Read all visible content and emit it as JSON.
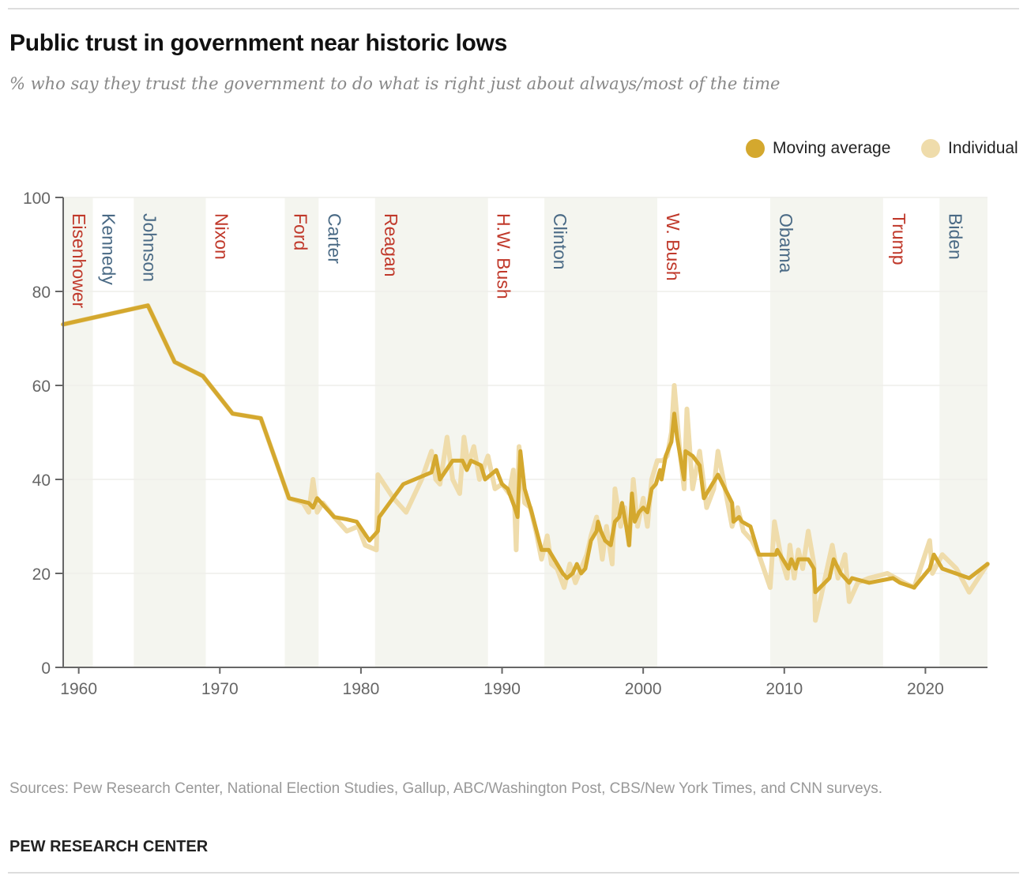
{
  "chart_data": {
    "type": "line",
    "title": "Public trust in government near historic lows",
    "subtitle": "% who say they trust the government to do what is right just about always/most of the time",
    "xlabel": "",
    "ylabel": "",
    "xlim": [
      1958.9,
      2024.4
    ],
    "ylim": [
      0,
      100
    ],
    "xticks": [
      1960,
      1970,
      1980,
      1990,
      2000,
      2010,
      2020
    ],
    "yticks": [
      0,
      20,
      40,
      60,
      80,
      100
    ],
    "grid": true,
    "legend_position": "top-right",
    "legend": [
      {
        "label": "Moving average",
        "color": "#d4a82e"
      },
      {
        "label": "Individual",
        "color": "#efdcab"
      }
    ],
    "presidents": [
      {
        "name": "Eisenhower",
        "start": 1958.9,
        "end": 1961,
        "party": "R"
      },
      {
        "name": "Kennedy",
        "start": 1961,
        "end": 1963.9,
        "party": "D"
      },
      {
        "name": "Johnson",
        "start": 1963.9,
        "end": 1969,
        "party": "D"
      },
      {
        "name": "Nixon",
        "start": 1969,
        "end": 1974.6,
        "party": "R"
      },
      {
        "name": "Ford",
        "start": 1974.6,
        "end": 1977,
        "party": "R"
      },
      {
        "name": "Carter",
        "start": 1977,
        "end": 1981,
        "party": "D"
      },
      {
        "name": "Reagan",
        "start": 1981,
        "end": 1989,
        "party": "R"
      },
      {
        "name": "H.W. Bush",
        "start": 1989,
        "end": 1993,
        "party": "R"
      },
      {
        "name": "Clinton",
        "start": 1993,
        "end": 2001,
        "party": "D"
      },
      {
        "name": "W. Bush",
        "start": 2001,
        "end": 2009,
        "party": "R"
      },
      {
        "name": "Obama",
        "start": 2009,
        "end": 2017,
        "party": "D"
      },
      {
        "name": "Trump",
        "start": 2017,
        "end": 2021,
        "party": "R"
      },
      {
        "name": "Biden",
        "start": 2021,
        "end": 2024.4,
        "party": "D"
      }
    ],
    "party_colors": {
      "R": "#c0392b",
      "D": "#4a6a85"
    },
    "series": [
      {
        "name": "Individual",
        "color": "#efdcab",
        "points": [
          [
            1958.9,
            73
          ],
          [
            1964.9,
            77
          ],
          [
            1966.8,
            65
          ],
          [
            1968.8,
            62
          ],
          [
            1970.9,
            54
          ],
          [
            1972.9,
            53
          ],
          [
            1974.9,
            36
          ],
          [
            1975.9,
            35
          ],
          [
            1976.3,
            33
          ],
          [
            1976.6,
            40
          ],
          [
            1976.9,
            33
          ],
          [
            1977.3,
            35
          ],
          [
            1978.1,
            32
          ],
          [
            1979,
            29
          ],
          [
            1979.8,
            30
          ],
          [
            1980.3,
            26
          ],
          [
            1981.1,
            25
          ],
          [
            1981.2,
            41
          ],
          [
            1982.3,
            36
          ],
          [
            1983.2,
            33
          ],
          [
            1984.3,
            40
          ],
          [
            1985,
            46
          ],
          [
            1985.3,
            40
          ],
          [
            1985.6,
            39
          ],
          [
            1986.1,
            49
          ],
          [
            1986.5,
            40
          ],
          [
            1987,
            37
          ],
          [
            1987.3,
            49
          ],
          [
            1987.6,
            43
          ],
          [
            1988,
            47
          ],
          [
            1988.4,
            40
          ],
          [
            1989,
            45
          ],
          [
            1989.5,
            38
          ],
          [
            1990,
            39
          ],
          [
            1990.5,
            37
          ],
          [
            1990.8,
            42
          ],
          [
            1991,
            25
          ],
          [
            1991.2,
            47
          ],
          [
            1991.6,
            35
          ],
          [
            1992,
            34
          ],
          [
            1992.4,
            29
          ],
          [
            1992.8,
            23
          ],
          [
            1993.2,
            28
          ],
          [
            1993.5,
            22
          ],
          [
            1993.9,
            21
          ],
          [
            1994.4,
            17
          ],
          [
            1994.8,
            22
          ],
          [
            1995.2,
            18
          ],
          [
            1995.6,
            21
          ],
          [
            1996,
            24
          ],
          [
            1996.3,
            28
          ],
          [
            1996.7,
            32
          ],
          [
            1997.1,
            23
          ],
          [
            1997.4,
            30
          ],
          [
            1997.8,
            22
          ],
          [
            1998,
            38
          ],
          [
            1998.4,
            30
          ],
          [
            1998.7,
            34
          ],
          [
            1999,
            26
          ],
          [
            1999.3,
            40
          ],
          [
            1999.6,
            30
          ],
          [
            2000,
            36
          ],
          [
            2000.3,
            30
          ],
          [
            2000.6,
            40
          ],
          [
            2001,
            44
          ],
          [
            2001.4,
            44
          ],
          [
            2001.7,
            45
          ],
          [
            2002,
            50
          ],
          [
            2002.2,
            60
          ],
          [
            2002.6,
            46
          ],
          [
            2002.9,
            38
          ],
          [
            2003.1,
            55
          ],
          [
            2003.5,
            38
          ],
          [
            2004,
            46
          ],
          [
            2004.5,
            34
          ],
          [
            2005,
            38
          ],
          [
            2005.3,
            46
          ],
          [
            2005.8,
            38
          ],
          [
            2006.3,
            30
          ],
          [
            2006.7,
            34
          ],
          [
            2007.1,
            29
          ],
          [
            2007.7,
            27
          ],
          [
            2008.2,
            24
          ],
          [
            2009,
            17
          ],
          [
            2009.3,
            31
          ],
          [
            2009.8,
            23
          ],
          [
            2010.2,
            19
          ],
          [
            2010.4,
            26
          ],
          [
            2010.7,
            19
          ],
          [
            2011,
            25
          ],
          [
            2011.3,
            21
          ],
          [
            2011.7,
            29
          ],
          [
            2012.1,
            22
          ],
          [
            2012.2,
            10
          ],
          [
            2012.6,
            15
          ],
          [
            2013.1,
            22
          ],
          [
            2013.4,
            26
          ],
          [
            2013.8,
            19
          ],
          [
            2014.3,
            24
          ],
          [
            2014.6,
            14
          ],
          [
            2015.2,
            18
          ],
          [
            2016,
            19
          ],
          [
            2017.3,
            20
          ],
          [
            2018.5,
            18
          ],
          [
            2019.2,
            17
          ],
          [
            2020.3,
            27
          ],
          [
            2020.5,
            20
          ],
          [
            2021.2,
            24
          ],
          [
            2022.2,
            21
          ],
          [
            2023.1,
            16
          ],
          [
            2024.4,
            22
          ]
        ]
      },
      {
        "name": "Moving average",
        "color": "#d4a82e",
        "points": [
          [
            1958.9,
            73
          ],
          [
            1964.9,
            77
          ],
          [
            1966.8,
            65
          ],
          [
            1968.8,
            62
          ],
          [
            1970.9,
            54
          ],
          [
            1972.9,
            53
          ],
          [
            1974.9,
            36
          ],
          [
            1976.3,
            35
          ],
          [
            1976.6,
            34
          ],
          [
            1976.9,
            36
          ],
          [
            1977.5,
            34
          ],
          [
            1978.1,
            32
          ],
          [
            1979,
            31.5
          ],
          [
            1979.7,
            31
          ],
          [
            1980.6,
            27
          ],
          [
            1981.2,
            29
          ],
          [
            1981.3,
            32
          ],
          [
            1983,
            39
          ],
          [
            1985,
            41.5
          ],
          [
            1985.3,
            45
          ],
          [
            1985.6,
            40
          ],
          [
            1986.5,
            44
          ],
          [
            1987.2,
            44
          ],
          [
            1987.5,
            42
          ],
          [
            1987.8,
            44
          ],
          [
            1988.5,
            43
          ],
          [
            1988.8,
            40
          ],
          [
            1989.6,
            42
          ],
          [
            1990,
            39
          ],
          [
            1990.4,
            38
          ],
          [
            1990.9,
            34
          ],
          [
            1991.1,
            32
          ],
          [
            1991.3,
            46
          ],
          [
            1991.6,
            38
          ],
          [
            1992.1,
            33
          ],
          [
            1992.8,
            25
          ],
          [
            1993.3,
            25
          ],
          [
            1993.9,
            22
          ],
          [
            1994.3,
            20
          ],
          [
            1994.6,
            19
          ],
          [
            1995,
            20
          ],
          [
            1995.3,
            22
          ],
          [
            1995.6,
            20
          ],
          [
            1995.9,
            21
          ],
          [
            1996.3,
            27
          ],
          [
            1996.7,
            29
          ],
          [
            1996.8,
            31
          ],
          [
            1997,
            29
          ],
          [
            1997.3,
            27
          ],
          [
            1997.7,
            26
          ],
          [
            1998,
            31
          ],
          [
            1998.3,
            32
          ],
          [
            1998.5,
            35
          ],
          [
            1998.8,
            30
          ],
          [
            1999,
            26
          ],
          [
            1999.2,
            37
          ],
          [
            1999.4,
            31
          ],
          [
            1999.7,
            33
          ],
          [
            2000,
            34
          ],
          [
            2000.3,
            33
          ],
          [
            2000.6,
            38
          ],
          [
            2000.9,
            39
          ],
          [
            2001.2,
            42
          ],
          [
            2001.3,
            40
          ],
          [
            2001.6,
            45
          ],
          [
            2002,
            48
          ],
          [
            2002.2,
            54
          ],
          [
            2002.4,
            49
          ],
          [
            2002.9,
            40
          ],
          [
            2003,
            46
          ],
          [
            2003.5,
            45
          ],
          [
            2004,
            43
          ],
          [
            2004.3,
            36
          ],
          [
            2004.7,
            38
          ],
          [
            2005.3,
            41
          ],
          [
            2005.8,
            38
          ],
          [
            2006.3,
            35
          ],
          [
            2006.4,
            31
          ],
          [
            2006.8,
            32
          ],
          [
            2007,
            31
          ],
          [
            2007.6,
            30
          ],
          [
            2008.2,
            24
          ],
          [
            2009.4,
            24
          ],
          [
            2009.5,
            25
          ],
          [
            2010.3,
            21
          ],
          [
            2010.5,
            23
          ],
          [
            2010.8,
            21
          ],
          [
            2011,
            23
          ],
          [
            2011.7,
            23
          ],
          [
            2012.1,
            21
          ],
          [
            2012.2,
            16
          ],
          [
            2013.2,
            19
          ],
          [
            2013.5,
            23
          ],
          [
            2014,
            20
          ],
          [
            2014.3,
            19
          ],
          [
            2014.6,
            18
          ],
          [
            2014.8,
            19
          ],
          [
            2016,
            18
          ],
          [
            2017.7,
            19
          ],
          [
            2018.2,
            18
          ],
          [
            2019.2,
            17
          ],
          [
            2020.3,
            21
          ],
          [
            2020.6,
            24
          ],
          [
            2021.2,
            21
          ],
          [
            2023.1,
            19
          ],
          [
            2024.4,
            22
          ]
        ]
      }
    ]
  },
  "footer": {
    "sources": "Sources: Pew Research Center, National Election Studies, Gallup, ABC/Washington Post, CBS/New York Times, and CNN surveys.",
    "brand": "PEW RESEARCH CENTER"
  }
}
